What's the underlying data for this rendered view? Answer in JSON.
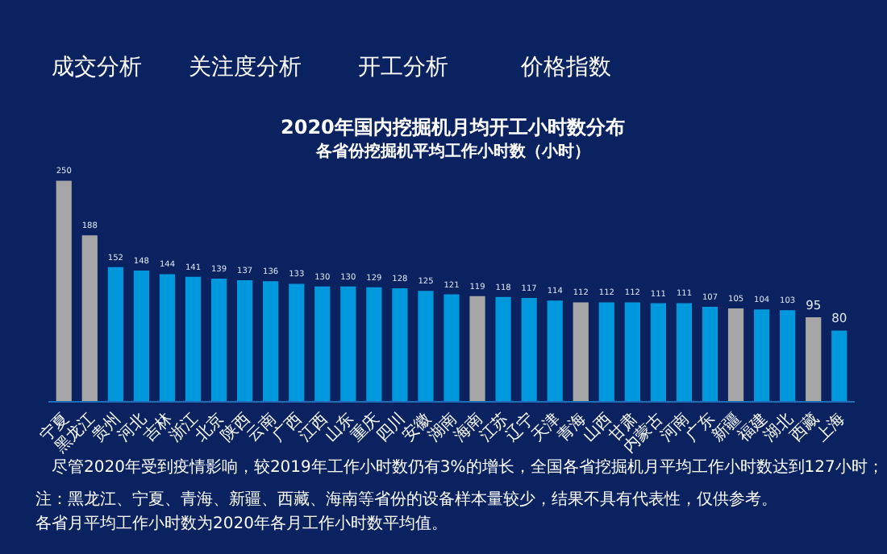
{
  "chart_data": {
    "type": "bar",
    "title": "2020年国内挖掘机月均开工小时数分布",
    "subtitle": "各省份挖掘机平均工作小时数（小时）",
    "categories": [
      "宁夏",
      "黑龙江",
      "贵州",
      "河北",
      "吉林",
      "浙江",
      "北京",
      "陕西",
      "云南",
      "广西",
      "江西",
      "山东",
      "重庆",
      "四川",
      "安徽",
      "湖南",
      "海南",
      "江苏",
      "辽宁",
      "天津",
      "青海",
      "山西",
      "甘肃",
      "内蒙古",
      "河南",
      "广东",
      "新疆",
      "福建",
      "湖北",
      "西藏",
      "上海"
    ],
    "values": [
      250,
      188,
      152,
      148,
      144,
      141,
      139,
      137,
      136,
      133,
      130,
      130,
      129,
      128,
      125,
      121,
      119,
      118,
      117,
      114,
      112,
      112,
      112,
      111,
      111,
      107,
      105,
      104,
      103,
      95,
      80
    ],
    "colors": [
      "#a6a6a6",
      "#a6a6a6",
      "#0098dd",
      "#0098dd",
      "#0098dd",
      "#0098dd",
      "#0098dd",
      "#0098dd",
      "#0098dd",
      "#0098dd",
      "#0098dd",
      "#0098dd",
      "#0098dd",
      "#0098dd",
      "#0098dd",
      "#0098dd",
      "#a6a6a6",
      "#0098dd",
      "#0098dd",
      "#0098dd",
      "#a6a6a6",
      "#0098dd",
      "#0098dd",
      "#0098dd",
      "#0098dd",
      "#0098dd",
      "#a6a6a6",
      "#0098dd",
      "#0098dd",
      "#a6a6a6",
      "#0098dd"
    ],
    "data_labels": true,
    "annotations": [
      "成交分析",
      "关注度分析",
      "开工分析",
      "价格指数",
      "尽管2020年受到疫情影响，较2019年工作小时数仍有3%的增长，全国各省挖掘机月平均工作小时数达到127小时；",
      "注：黑龙江、宁夏、青海、新疆、西藏、海南等省份的设备样本量较少，结果不具有代表性，仅供参考。",
      "各省月平均工作小时数为2020年各月工作小时数平均值。"
    ]
  }
}
